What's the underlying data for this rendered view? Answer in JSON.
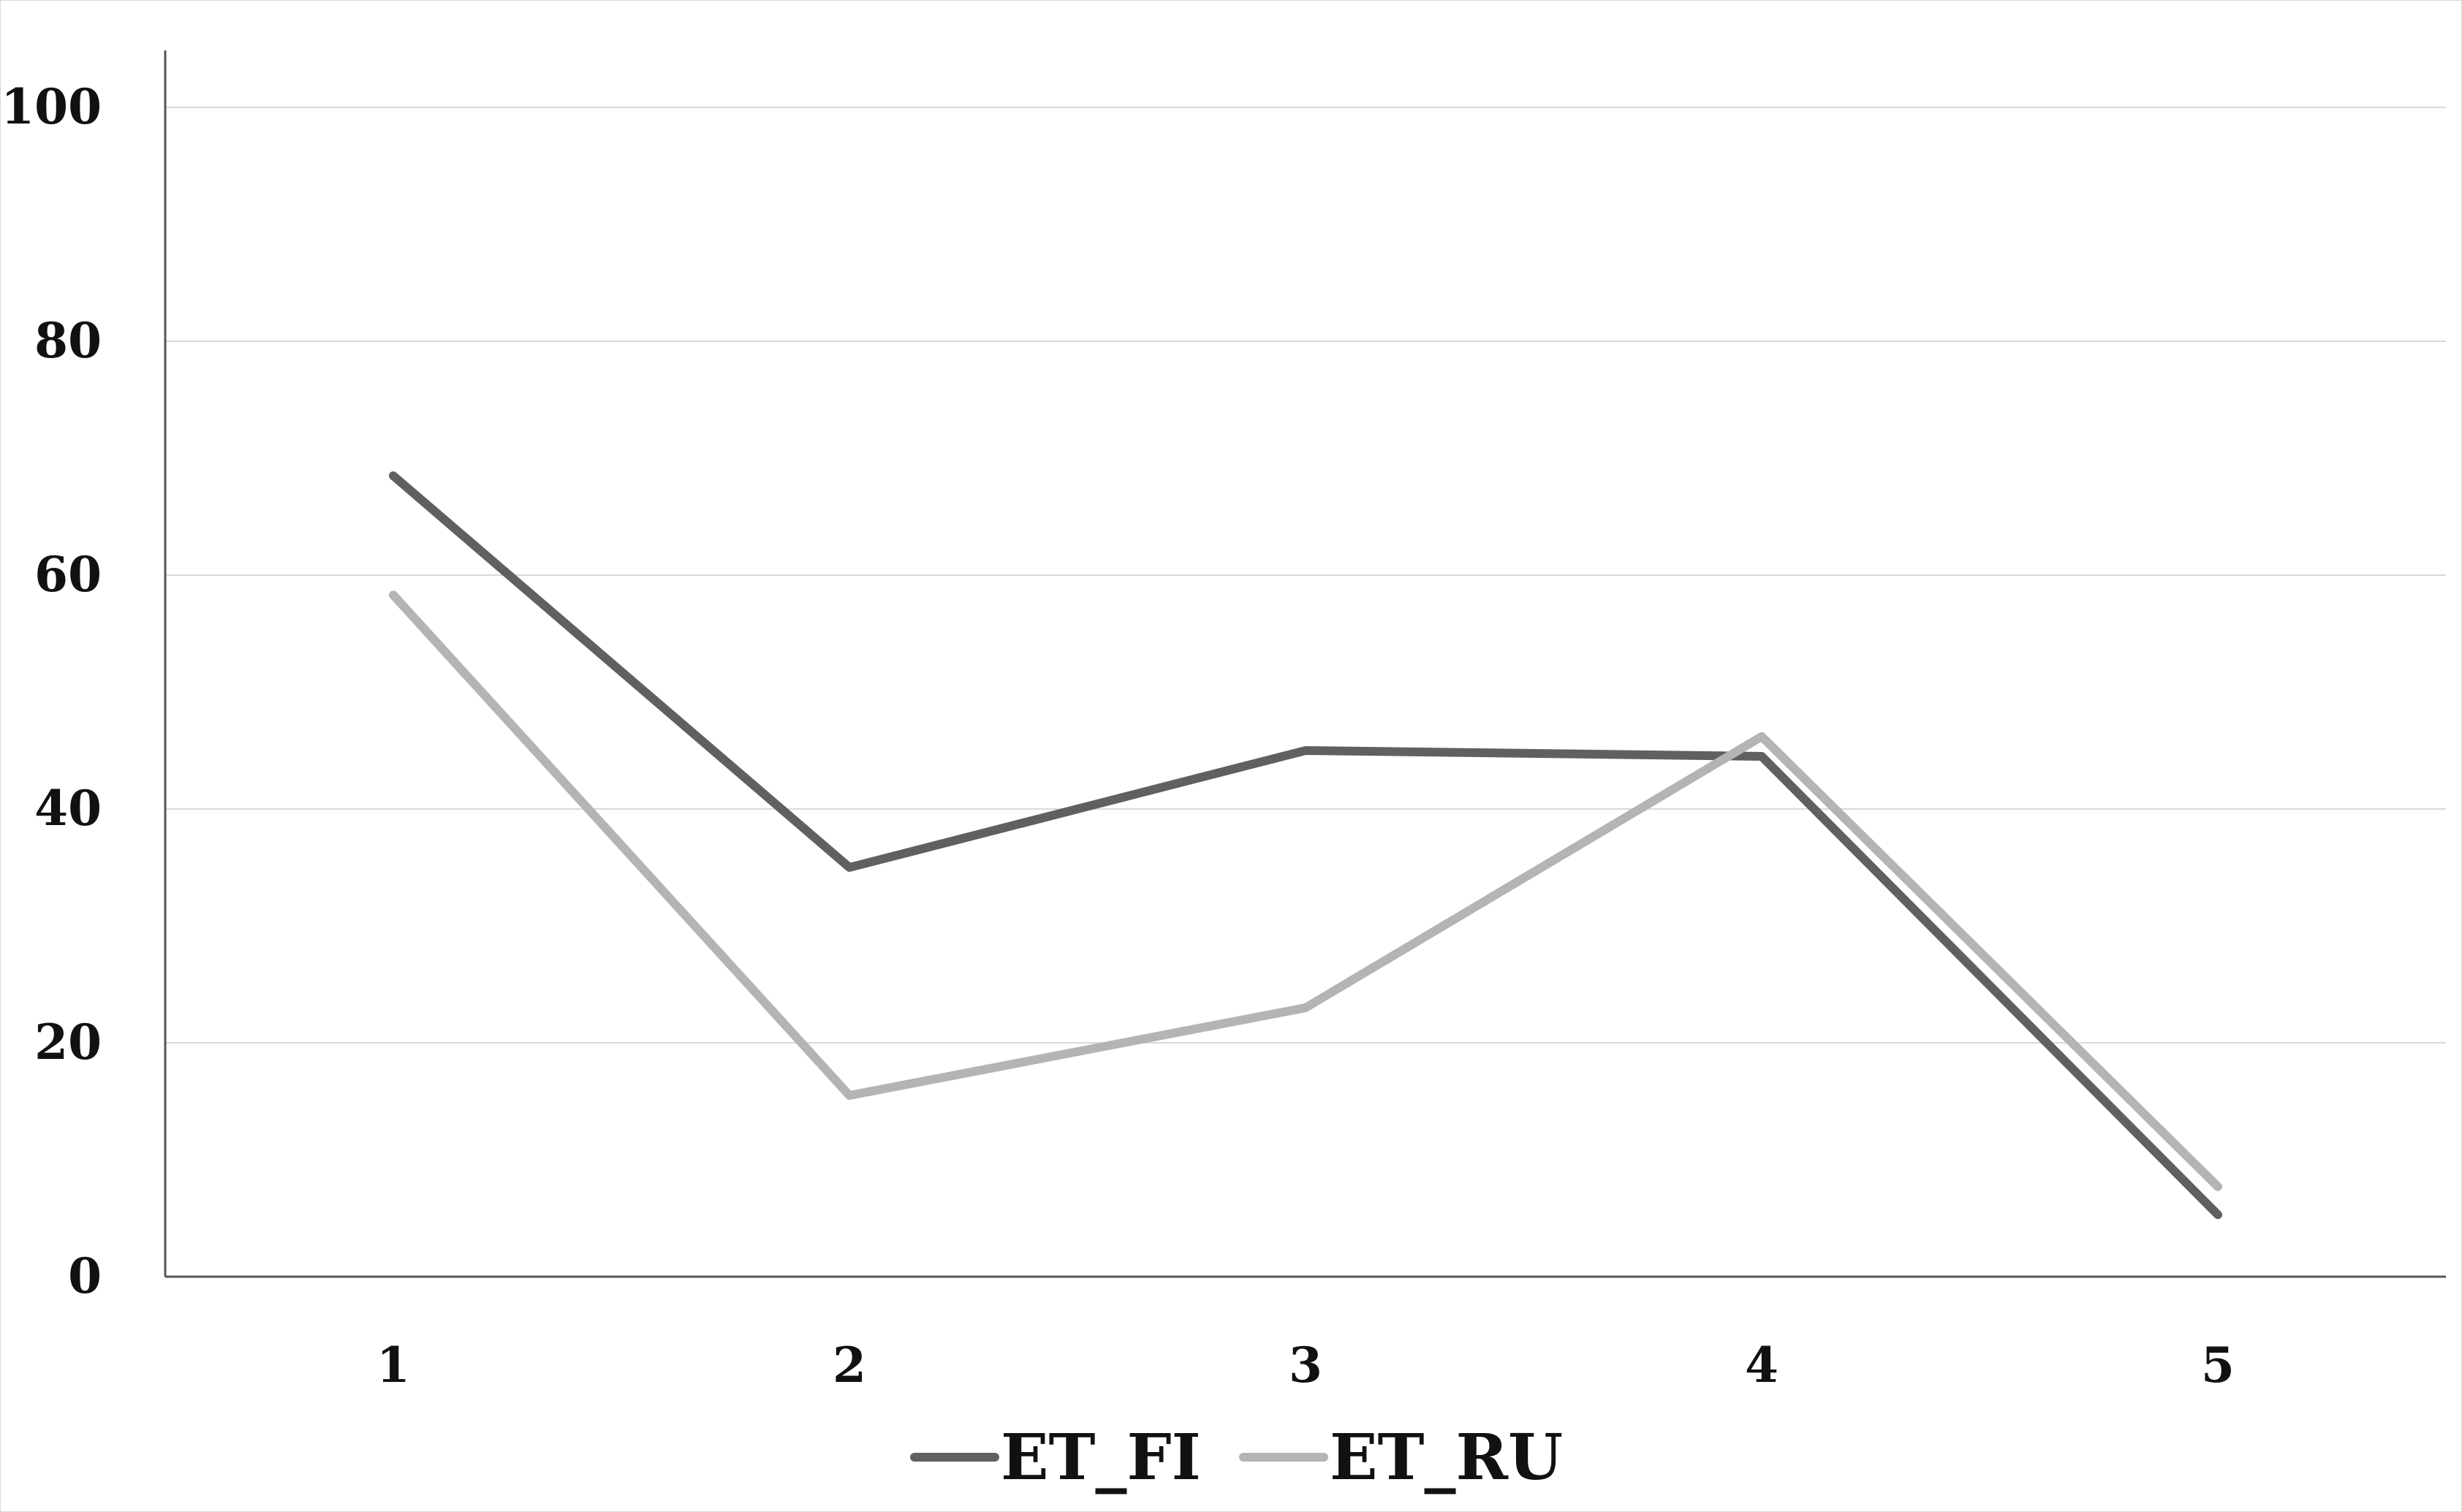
{
  "chart_data": {
    "type": "line",
    "title": "",
    "xlabel": "",
    "ylabel": "",
    "categories": [
      "1",
      "2",
      "3",
      "4",
      "5"
    ],
    "ylim": [
      0,
      105
    ],
    "yticks": [
      0,
      20,
      40,
      60,
      80,
      100
    ],
    "grid": true,
    "legend_position": "bottom",
    "series": [
      {
        "name": "ET_FI",
        "values": [
          68.5,
          35,
          45,
          44.5,
          5.3
        ],
        "color": "#606060"
      },
      {
        "name": "ET_RU",
        "values": [
          58.3,
          15.5,
          23,
          46.2,
          7.7
        ],
        "color": "#b4b4b4"
      }
    ]
  }
}
